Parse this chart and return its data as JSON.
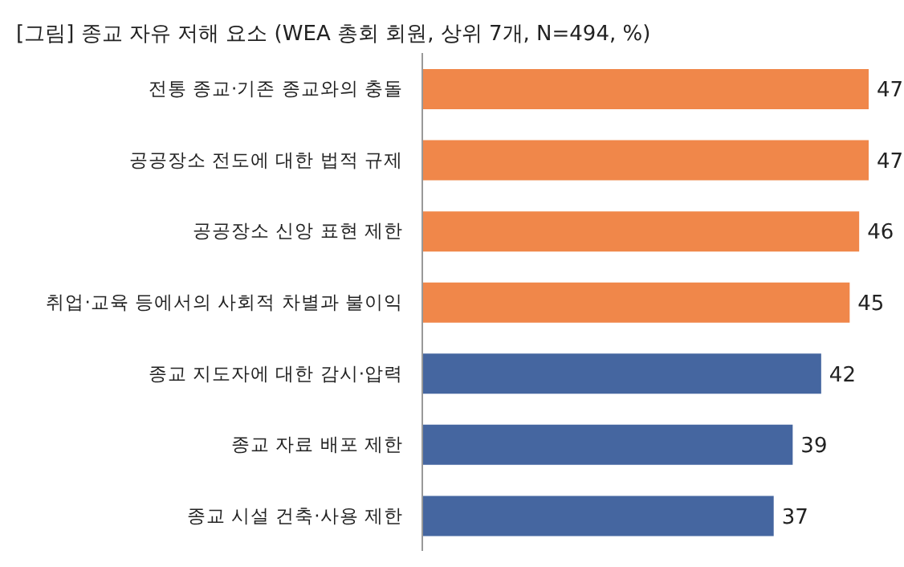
{
  "chart_data": {
    "type": "bar",
    "orientation": "horizontal",
    "title": "[그림] 종교 자유 저해 요소 (WEA 총회 회원, 상위 7개, N=494, %)",
    "categories": [
      "전통 종교·기존 종교와의 충돌",
      "공공장소 전도에 대한 법적 규제",
      "공공장소 신앙 표현 제한",
      "취업·교육 등에서의 사회적 차별과 불이익",
      "종교 지도자에 대한 감시·압력",
      "종교 자료 배포 제한",
      "종교 시설 건축·사용 제한"
    ],
    "values": [
      47,
      47,
      46,
      45,
      42,
      39,
      37
    ],
    "colors": [
      "#f0874a",
      "#f0874a",
      "#f0874a",
      "#f0874a",
      "#4566a0",
      "#4566a0",
      "#4566a0"
    ],
    "data_labels": true
  }
}
